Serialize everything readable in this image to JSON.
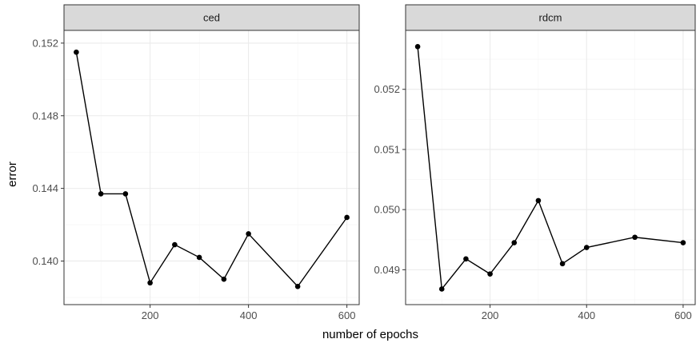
{
  "chart_data": {
    "type": "line",
    "xlabel": "number of epochs",
    "ylabel": "error",
    "grid": true,
    "colors": {
      "line": "#000000",
      "point": "#000000",
      "strip_fill": "#d9d9d9",
      "grid_major": "#ebebeb",
      "grid_minor": "#f5f5f5",
      "panel_border": "#333333"
    },
    "panels": [
      {
        "name": "ced",
        "x": [
          50,
          100,
          150,
          200,
          250,
          300,
          350,
          400,
          500,
          600
        ],
        "y": [
          0.1515,
          0.1437,
          0.1437,
          0.1388,
          0.1409,
          0.1402,
          0.139,
          0.1415,
          0.1386,
          0.1424
        ],
        "xlim": [
          25,
          625
        ],
        "ylim": [
          0.1376,
          0.1527
        ],
        "xticks": [
          200,
          400,
          600
        ],
        "xtick_labels": [
          "200",
          "400",
          "600"
        ],
        "yticks": [
          0.14,
          0.144,
          0.148,
          0.152
        ],
        "ytick_labels": [
          "0.140",
          "0.144",
          "0.148",
          "0.152"
        ]
      },
      {
        "name": "rdcm",
        "x": [
          50,
          100,
          150,
          200,
          250,
          300,
          350,
          400,
          500,
          600
        ],
        "y": [
          0.05271,
          0.04868,
          0.04918,
          0.04893,
          0.04945,
          0.05015,
          0.0491,
          0.04937,
          0.04954,
          0.04945
        ],
        "xlim": [
          25,
          625
        ],
        "ylim": [
          0.04842,
          0.05298
        ],
        "xticks": [
          200,
          400,
          600
        ],
        "xtick_labels": [
          "200",
          "400",
          "600"
        ],
        "yticks": [
          0.049,
          0.05,
          0.051,
          0.052
        ],
        "ytick_labels": [
          "0.049",
          "0.050",
          "0.051",
          "0.052"
        ]
      }
    ]
  }
}
